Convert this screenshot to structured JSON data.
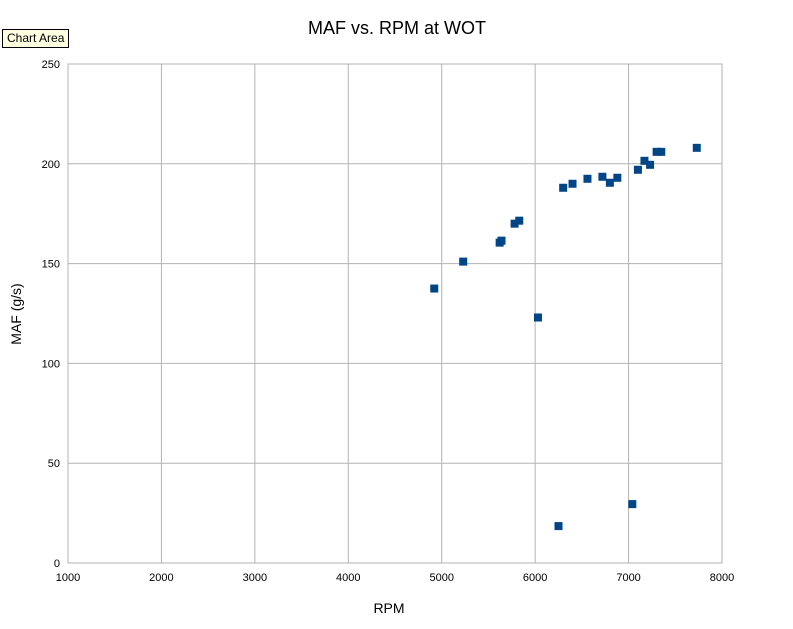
{
  "tooltip": "Chart Area",
  "chart_data": {
    "type": "scatter",
    "title": "MAF vs. RPM at WOT",
    "xlabel": "RPM",
    "ylabel": "MAF (g/s)",
    "xlim": [
      1000,
      8000
    ],
    "ylim": [
      0,
      250
    ],
    "xticks": [
      1000,
      2000,
      3000,
      4000,
      5000,
      6000,
      7000,
      8000
    ],
    "yticks": [
      0,
      50,
      100,
      150,
      200,
      250
    ],
    "grid": true,
    "legend": "none",
    "marker_color": "#004586",
    "series": [
      {
        "points": [
          [
            4920,
            137.5
          ],
          [
            5230,
            151
          ],
          [
            5620,
            160.5
          ],
          [
            5640,
            161.5
          ],
          [
            5780,
            170
          ],
          [
            5830,
            171.5
          ],
          [
            6030,
            123
          ],
          [
            6250,
            18.5
          ],
          [
            6300,
            188
          ],
          [
            6400,
            190
          ],
          [
            6560,
            192.5
          ],
          [
            6720,
            193.5
          ],
          [
            6800,
            190.5
          ],
          [
            6880,
            193
          ],
          [
            7040,
            29.5
          ],
          [
            7100,
            197
          ],
          [
            7170,
            201.5
          ],
          [
            7230,
            199.5
          ],
          [
            7300,
            206
          ],
          [
            7350,
            206
          ],
          [
            7730,
            208
          ]
        ]
      }
    ]
  }
}
